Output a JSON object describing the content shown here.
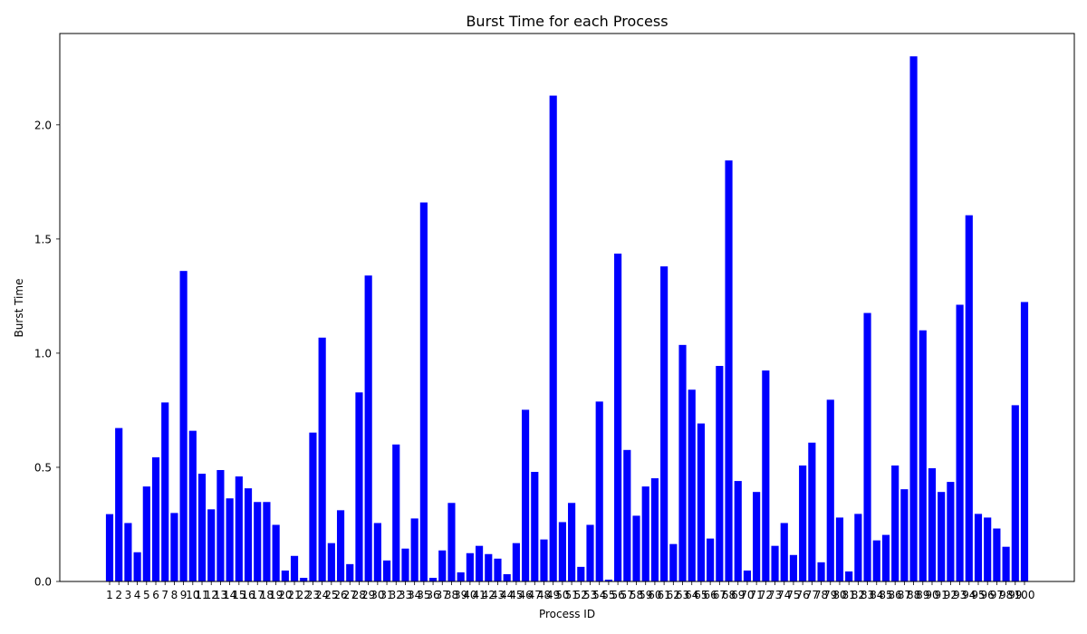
{
  "chart_data": {
    "type": "bar",
    "title": "Burst Time for each Process",
    "xlabel": "Process ID",
    "ylabel": "Burst Time",
    "ylim": [
      0,
      2.4
    ],
    "yticks": [
      "0.0",
      "0.5",
      "1.0",
      "1.5",
      "2.0"
    ],
    "grid": false,
    "legend": "none",
    "bar_color": "#0000ff",
    "categories": [
      "1",
      "2",
      "3",
      "4",
      "5",
      "6",
      "7",
      "8",
      "9",
      "10",
      "11",
      "12",
      "13",
      "14",
      "15",
      "16",
      "17",
      "18",
      "19",
      "20",
      "21",
      "22",
      "23",
      "24",
      "25",
      "26",
      "27",
      "28",
      "29",
      "30",
      "31",
      "32",
      "33",
      "34",
      "35",
      "36",
      "37",
      "38",
      "39",
      "40",
      "41",
      "42",
      "43",
      "44",
      "45",
      "46",
      "47",
      "48",
      "49",
      "50",
      "51",
      "52",
      "53",
      "54",
      "55",
      "56",
      "57",
      "58",
      "59",
      "60",
      "61",
      "62",
      "63",
      "64",
      "65",
      "66",
      "67",
      "68",
      "69",
      "70",
      "71",
      "72",
      "73",
      "74",
      "75",
      "76",
      "77",
      "78",
      "79",
      "80",
      "81",
      "82",
      "83",
      "84",
      "85",
      "86",
      "87",
      "88",
      "89",
      "90",
      "91",
      "92",
      "93",
      "94",
      "95",
      "96",
      "97",
      "98",
      "99",
      "100"
    ],
    "values": [
      0.295,
      0.672,
      0.256,
      0.128,
      0.416,
      0.544,
      0.784,
      0.3,
      1.36,
      0.66,
      0.472,
      0.316,
      0.488,
      0.364,
      0.46,
      0.408,
      0.348,
      0.348,
      0.248,
      0.048,
      0.112,
      0.016,
      0.652,
      1.068,
      0.168,
      0.312,
      0.076,
      0.828,
      1.34,
      0.256,
      0.092,
      0.6,
      0.144,
      0.276,
      1.66,
      0.016,
      0.136,
      0.344,
      0.04,
      0.124,
      0.156,
      0.12,
      0.1,
      0.032,
      0.168,
      0.752,
      0.48,
      0.184,
      2.128,
      0.26,
      0.344,
      0.064,
      0.248,
      0.788,
      0.008,
      1.436,
      0.576,
      0.288,
      0.416,
      0.452,
      1.38,
      0.164,
      1.036,
      0.84,
      0.692,
      0.188,
      0.944,
      1.844,
      0.44,
      0.048,
      0.392,
      0.924,
      0.156,
      0.256,
      0.116,
      0.508,
      0.608,
      0.084,
      0.796,
      0.28,
      0.044,
      0.296,
      1.176,
      0.18,
      0.204,
      0.508,
      0.404,
      2.3,
      1.1,
      0.496,
      0.392,
      0.436,
      1.212,
      1.604,
      0.296,
      0.28,
      0.232,
      0.152,
      0.772,
      1.224
    ]
  }
}
